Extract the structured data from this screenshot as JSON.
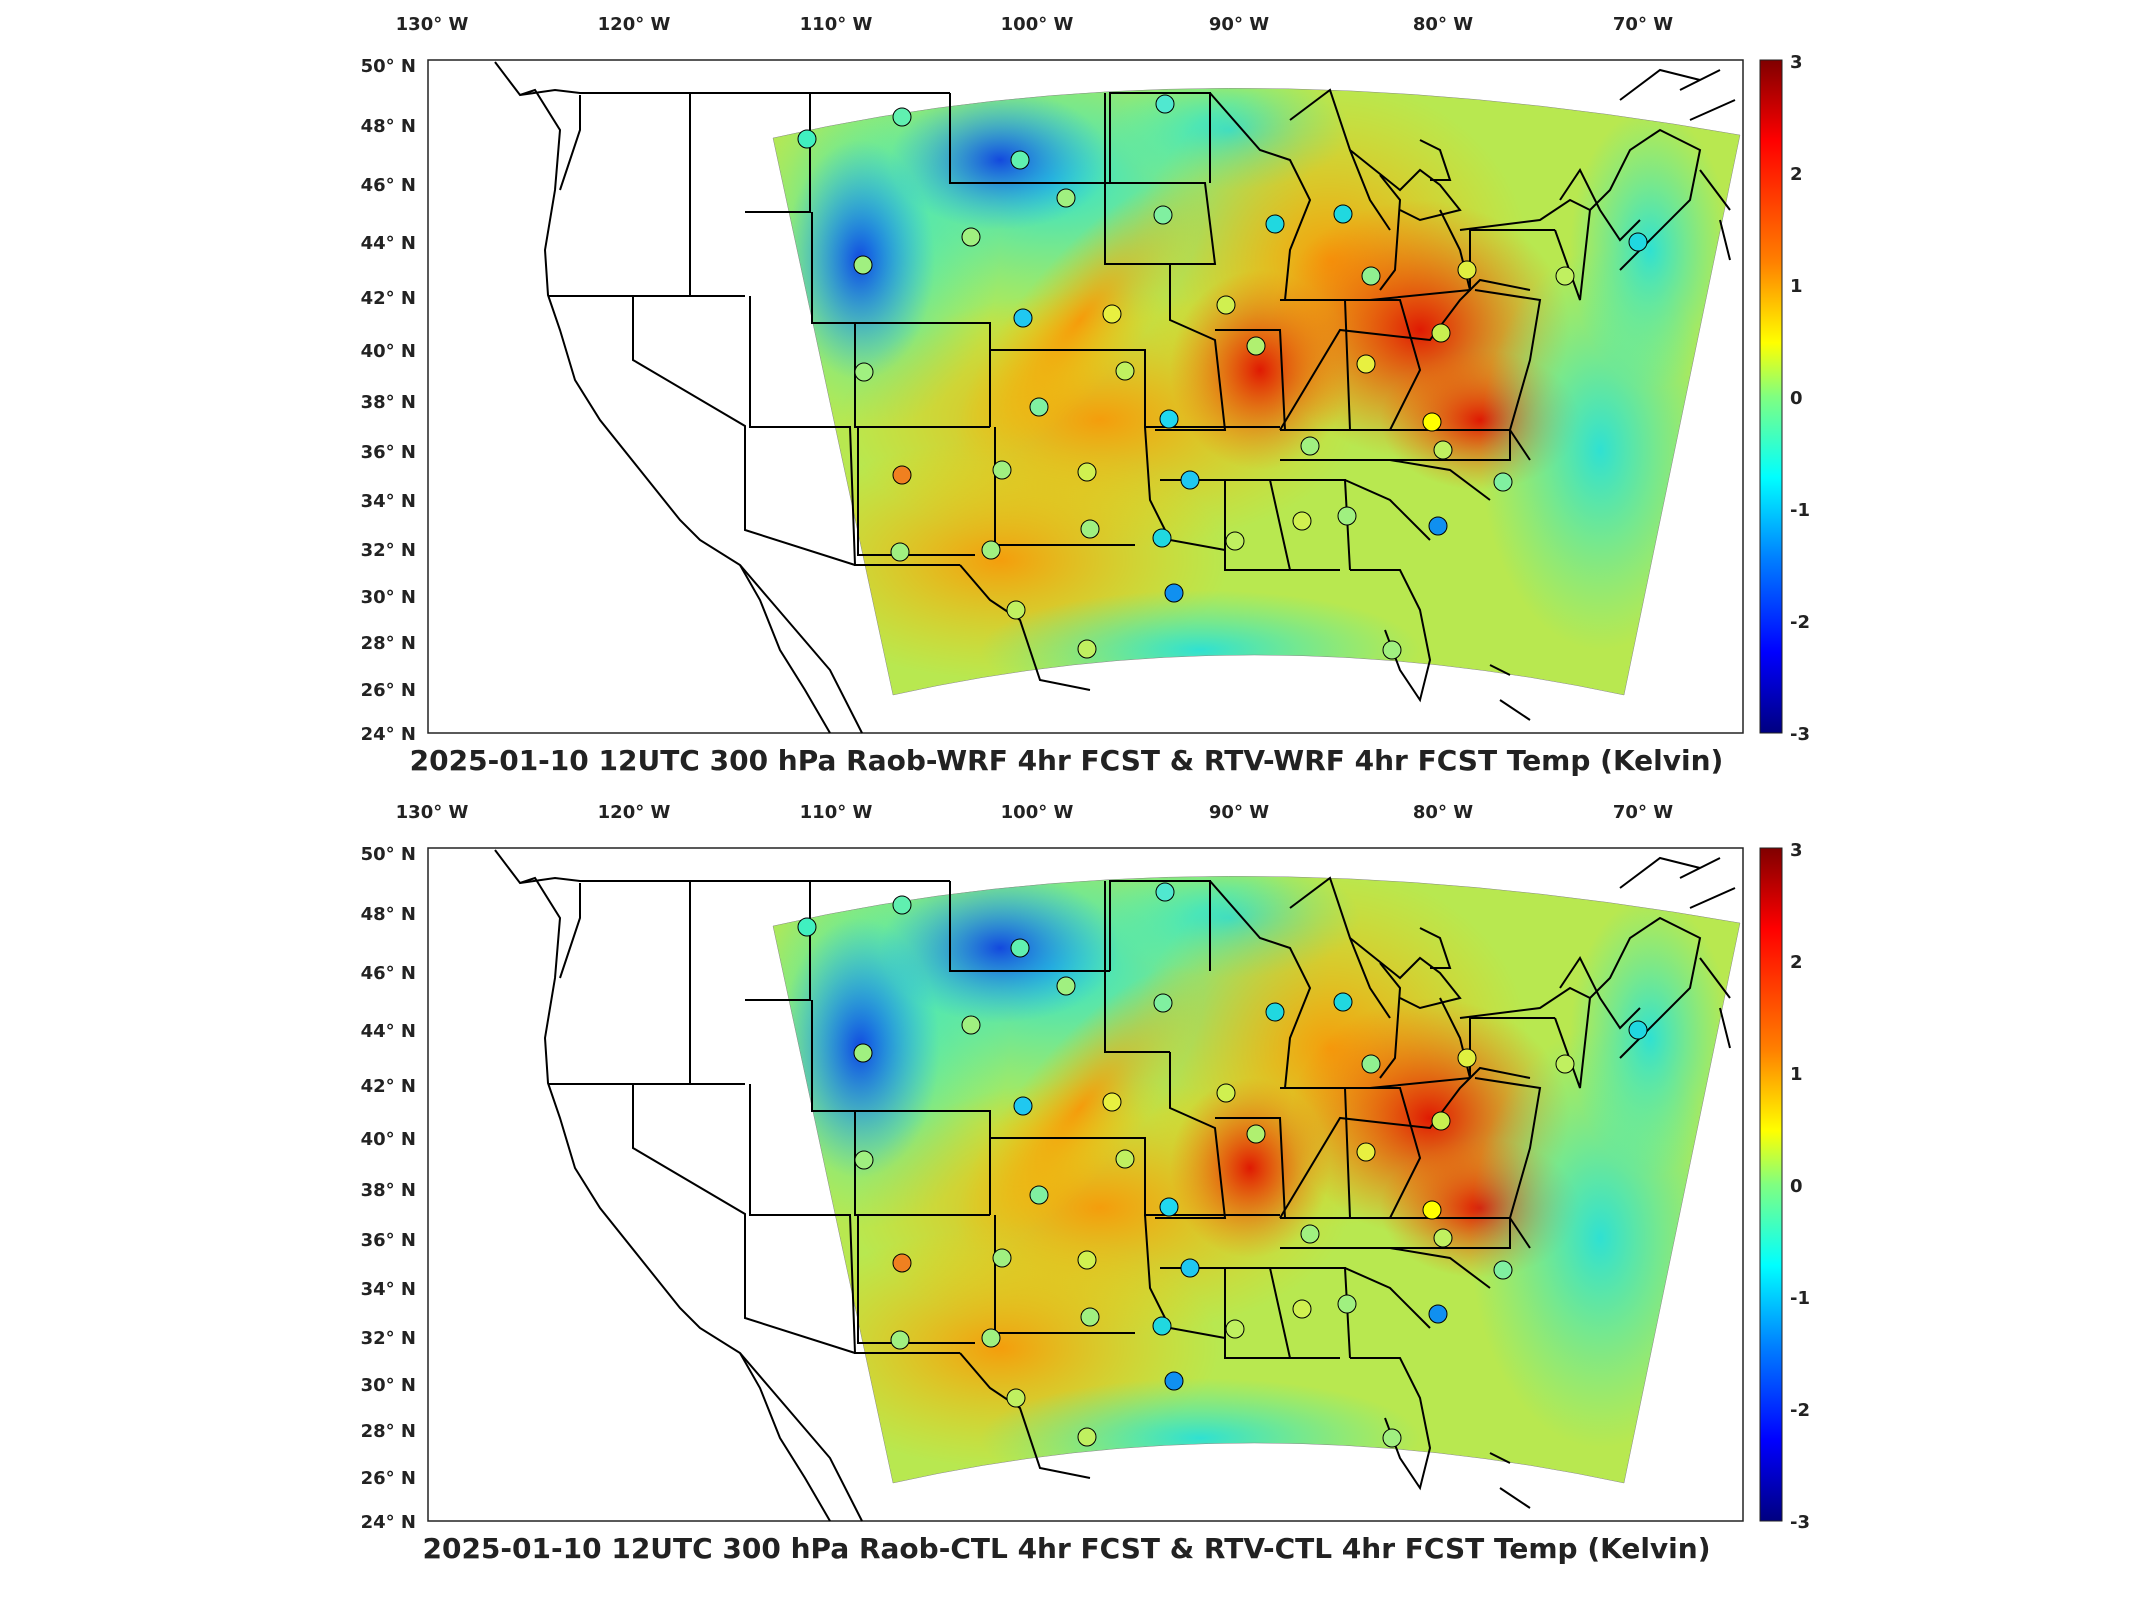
{
  "figure": {
    "panels": [
      {
        "id": "top",
        "title": "2025-01-10 12UTC 300 hPa Raob-WRF 4hr FCST & RTV-WRF 4hr FCST Temp (Kelvin)"
      },
      {
        "id": "bottom",
        "title": "2025-01-10 12UTC 300 hPa Raob-CTL 4hr FCST & RTV-CTL 4hr FCST Temp (Kelvin)"
      }
    ],
    "lon_ticks": [
      "130° W",
      "120° W",
      "110° W",
      "100° W",
      "90° W",
      "80° W",
      "70° W"
    ],
    "lat_ticks": [
      "50° N",
      "48° N",
      "46° N",
      "44° N",
      "42° N",
      "40° N",
      "38° N",
      "36° N",
      "34° N",
      "32° N",
      "30° N",
      "28° N",
      "26° N",
      "24° N"
    ],
    "colorbar": {
      "ticks": [
        "3",
        "2",
        "1",
        "0",
        "-1",
        "-2",
        "-3"
      ],
      "colors": [
        "#800000",
        "#ff0000",
        "#ff8000",
        "#ffff00",
        "#80ff80",
        "#00ffff",
        "#0080ff",
        "#0000ff",
        "#000080"
      ]
    }
  }
}
